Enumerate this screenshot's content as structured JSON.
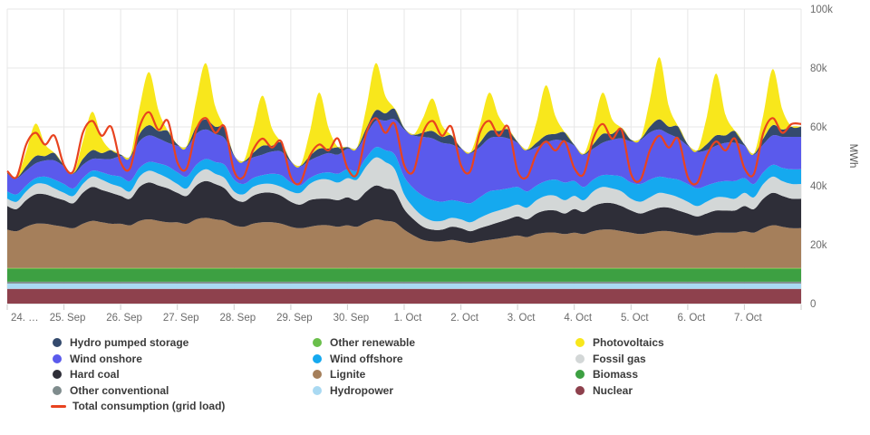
{
  "chart": {
    "y_axis": {
      "unit": "MWh",
      "tick_labels": [
        "0",
        "20k",
        "40k",
        "60k",
        "80k",
        "100k"
      ],
      "min": 0,
      "max": 100000
    },
    "x_axis": {
      "labels": [
        "24. …",
        "25. Sep",
        "26. Sep",
        "27. Sep",
        "28. Sep",
        "29. Sep",
        "30. Sep",
        "1. Oct",
        "2. Oct",
        "3. Oct",
        "4. Oct",
        "5. Oct",
        "6. Oct",
        "7. Oct"
      ]
    },
    "grid": {
      "line_color": "#e7e7e7",
      "axis_color": "#cccccc",
      "border_color": "#e2e2e2"
    },
    "chart_data": {
      "type": "area",
      "stacked": true,
      "value_unit": "MWh",
      "value_scale": 1000,
      "ylim": [
        0,
        100
      ],
      "days": 14,
      "points_per_day": 6,
      "hours_step": 4,
      "legend_position": "bottom",
      "series": [
        {
          "id": "nuclear",
          "name": "Nuclear",
          "color": "#8e414d",
          "constant": 5
        },
        {
          "id": "hydropower",
          "name": "Hydropower",
          "color": "#a9d9f2",
          "constant": 1.8
        },
        {
          "id": "other-conventional",
          "name": "Other conventional",
          "color": "#7f8c8d",
          "constant": 0.6
        },
        {
          "id": "biomass",
          "name": "Biomass",
          "color": "#3da042",
          "constant": 4.3
        },
        {
          "id": "other-renewable",
          "name": "Other renewable",
          "color": "#6abf4b",
          "constant": 0.4
        },
        {
          "id": "lignite",
          "name": "Lignite",
          "color": "#a57f5b",
          "values": [
            13,
            12.5,
            14,
            15,
            15,
            14.5,
            14,
            13.5,
            15,
            16,
            15.5,
            15,
            15,
            14.5,
            16,
            16.5,
            16,
            15.5,
            15.5,
            15,
            16.5,
            17,
            16.5,
            16,
            14.5,
            14,
            15,
            15.5,
            15.5,
            15,
            14,
            13.5,
            14,
            14.5,
            14.5,
            14,
            14.5,
            14,
            15.5,
            16.5,
            16,
            15.5,
            13,
            11,
            9.5,
            9,
            9,
            9.5,
            9,
            8.5,
            9,
            9.5,
            10,
            10.5,
            11,
            10.5,
            11.5,
            12,
            12,
            11.5,
            12,
            11.5,
            12.5,
            13,
            13,
            12.5,
            12,
            11.5,
            12,
            12.5,
            12.5,
            12,
            11.5,
            11,
            11.5,
            12,
            12,
            12,
            12.5,
            12,
            13.5,
            14.5,
            14,
            13.5
          ]
        },
        {
          "id": "hard-coal",
          "name": "Hard coal",
          "color": "#2e2e38",
          "values": [
            8,
            7.5,
            9,
            10,
            10,
            9.5,
            9,
            8.5,
            10.5,
            11.5,
            11,
            10.5,
            9.5,
            9,
            11.5,
            12.5,
            12,
            11.5,
            10,
            9.5,
            11.5,
            12.5,
            12,
            11,
            9,
            8.5,
            9.5,
            10,
            10,
            9.5,
            8.5,
            8,
            9,
            9,
            9,
            9,
            9.5,
            9,
            10.5,
            11.5,
            11,
            10.5,
            7,
            5.5,
            4.5,
            4,
            4,
            4.5,
            4.5,
            4,
            4.5,
            5,
            5.5,
            6,
            6.5,
            6,
            7,
            7.5,
            7.5,
            7,
            8,
            7.5,
            8.5,
            9,
            9,
            8.5,
            7.5,
            7,
            7.5,
            8,
            8,
            7.5,
            7,
            6.5,
            7,
            7.5,
            7.5,
            7.5,
            8.5,
            8,
            10,
            11,
            10.5,
            10
          ]
        },
        {
          "id": "fossil-gas",
          "name": "Fossil gas",
          "color": "#d3d7d7",
          "values": [
            2.5,
            2.5,
            3,
            3.5,
            3.5,
            3,
            2.5,
            2.5,
            3,
            3.5,
            3.5,
            3,
            3,
            2.5,
            3.5,
            4,
            4,
            3.5,
            3,
            2.5,
            3.5,
            4,
            3.5,
            3.5,
            2.5,
            2.5,
            3,
            3,
            3,
            3,
            3.5,
            4,
            5.5,
            6.5,
            6.5,
            6,
            6.5,
            7,
            8.5,
            9.5,
            9,
            7.5,
            5,
            4,
            3.5,
            3,
            3,
            3,
            3,
            3,
            3.5,
            4,
            4,
            4,
            4,
            4,
            4.5,
            5,
            5,
            4.5,
            4.5,
            4,
            5,
            5.5,
            5,
            5,
            4,
            4,
            4.5,
            5,
            4.5,
            4.5,
            4,
            3.5,
            4,
            4.5,
            4.5,
            4,
            4.5,
            4,
            5,
            5.5,
            5,
            5
          ]
        },
        {
          "id": "wind-offshore",
          "name": "Wind offshore",
          "color": "#15a9ef",
          "values": [
            2.5,
            2.5,
            2,
            2,
            2.5,
            3,
            3,
            2.5,
            2,
            2,
            2.5,
            3,
            3.5,
            3.5,
            3,
            3,
            3.5,
            4,
            4,
            4,
            3.5,
            3.5,
            4,
            4.5,
            4,
            3.5,
            3,
            3,
            3.5,
            4,
            3,
            2.5,
            2,
            2,
            2.5,
            3,
            3,
            3,
            3,
            3.5,
            4,
            5,
            6,
            6.5,
            7,
            7,
            6.5,
            6,
            6,
            6.5,
            7,
            7.5,
            7,
            6.5,
            6,
            5.5,
            5,
            5,
            5.5,
            6,
            5,
            4.5,
            4,
            4,
            4.5,
            5,
            5.5,
            6,
            6,
            5.5,
            5.5,
            6,
            6,
            6,
            5.5,
            5,
            5.5,
            6,
            5,
            4.5,
            4,
            4,
            4.5,
            5
          ]
        },
        {
          "id": "wind-onshore",
          "name": "Wind onshore",
          "color": "#5a5aec",
          "values": [
            6,
            5.5,
            5,
            5,
            5.5,
            6.5,
            6,
            5,
            4.5,
            4,
            4.5,
            5.5,
            7,
            8,
            9,
            9,
            8.5,
            8,
            9,
            10,
            10.5,
            10,
            9.5,
            9,
            8,
            7.5,
            7,
            7,
            7.5,
            8,
            7,
            6.5,
            6,
            6,
            6.5,
            6.5,
            7,
            7.5,
            8,
            9,
            10,
            12,
            16,
            18,
            20,
            21,
            20,
            19,
            18,
            17,
            17,
            18,
            18,
            17,
            15,
            14,
            13,
            13,
            13.5,
            14,
            12,
            11,
            10.5,
            11,
            12,
            13,
            14,
            15,
            16,
            16,
            15,
            14,
            13,
            12.5,
            12,
            12.5,
            13,
            13,
            11,
            10,
            9.5,
            10,
            10.5,
            11
          ]
        },
        {
          "id": "hydro-pumped-storage",
          "name": "Hydro pumped storage",
          "color": "#344a6d",
          "values": [
            0.3,
            0.2,
            1.5,
            2.5,
            1.5,
            2.5,
            0.3,
            0.2,
            2,
            3,
            2,
            3,
            0.5,
            0.3,
            2.5,
            3.5,
            2.5,
            4,
            0.5,
            0.3,
            2.5,
            3.5,
            2.5,
            3.5,
            0.3,
            0.2,
            1.5,
            3,
            2,
            3,
            0.3,
            0.2,
            1.5,
            2.5,
            1.5,
            2.5,
            0.5,
            0.3,
            2,
            3.5,
            2.5,
            3.5,
            0.5,
            0.3,
            1.5,
            2.5,
            2,
            3,
            0.3,
            0.2,
            1.5,
            2.5,
            2,
            3,
            0.3,
            0.2,
            1.5,
            2.5,
            2,
            3,
            0.3,
            0.2,
            1.5,
            3,
            2,
            3.5,
            0.5,
            0.3,
            2,
            3.5,
            2.5,
            4,
            0.5,
            0.3,
            2,
            3.5,
            2.5,
            4,
            0.5,
            0.3,
            2,
            3.5,
            2.5,
            3.5
          ]
        },
        {
          "id": "photovoltaics",
          "name": "Photovoltaics",
          "color": "#f8e71c",
          "values": [
            0,
            0,
            5,
            11,
            4,
            0,
            0,
            0,
            6,
            13,
            5,
            0,
            0,
            0,
            9,
            18,
            7,
            0,
            0,
            0,
            9,
            19,
            7,
            0,
            0,
            0,
            8,
            17,
            6,
            0,
            0,
            0,
            8,
            19,
            7,
            0,
            0,
            0,
            7,
            16,
            6,
            0,
            0,
            0,
            5,
            11,
            4,
            0,
            0,
            0,
            6,
            13,
            5,
            0,
            0,
            0,
            7,
            17,
            6,
            0,
            0,
            0,
            6,
            14,
            5,
            0,
            0,
            0,
            9,
            21,
            7,
            0,
            0,
            0,
            9,
            21,
            7,
            0,
            0,
            0,
            8,
            19,
            7,
            0
          ]
        }
      ],
      "line_series": {
        "id": "total-consumption",
        "name": "Total consumption (grid load)",
        "color": "#e8431f",
        "width": 2.2,
        "values": [
          45,
          43,
          54,
          58,
          54,
          57,
          47,
          45,
          58,
          62,
          57,
          60,
          48,
          46,
          60,
          65,
          59,
          62,
          48,
          46,
          59,
          63,
          58,
          60,
          45,
          43,
          52,
          56,
          53,
          55,
          43,
          41,
          50,
          54,
          52,
          56,
          46,
          44,
          58,
          63,
          58,
          61,
          47,
          45,
          58,
          62,
          57,
          60,
          47,
          45,
          58,
          62,
          57,
          60,
          45,
          43,
          51,
          55,
          52,
          55,
          46,
          44,
          56,
          61,
          56,
          59,
          44,
          42,
          52,
          57,
          53,
          56,
          43,
          41,
          50,
          55,
          52,
          56,
          46,
          44,
          58,
          63,
          58,
          61
        ]
      }
    }
  },
  "legend": {
    "columns": [
      {
        "items": [
          {
            "label": "Hydro pumped storage",
            "color": "#344a6d",
            "swatch": "dot"
          },
          {
            "label": "Wind onshore",
            "color": "#5a5aec",
            "swatch": "dot"
          },
          {
            "label": "Hard coal",
            "color": "#2e2e38",
            "swatch": "dot"
          },
          {
            "label": "Other conventional",
            "color": "#7f8c8d",
            "swatch": "dot"
          },
          {
            "label": "Total consumption (grid load)",
            "color": "#e8431f",
            "swatch": "line"
          }
        ]
      },
      {
        "items": [
          {
            "label": "Other renewable",
            "color": "#6abf4b",
            "swatch": "dot"
          },
          {
            "label": "Wind offshore",
            "color": "#15a9ef",
            "swatch": "dot"
          },
          {
            "label": "Lignite",
            "color": "#a57f5b",
            "swatch": "dot"
          },
          {
            "label": "Hydropower",
            "color": "#a9d9f2",
            "swatch": "dot"
          }
        ]
      },
      {
        "items": [
          {
            "label": "Photovoltaics",
            "color": "#f8e71c",
            "swatch": "dot"
          },
          {
            "label": "Fossil gas",
            "color": "#d3d7d7",
            "swatch": "dot"
          },
          {
            "label": "Biomass",
            "color": "#3da042",
            "swatch": "dot"
          },
          {
            "label": "Nuclear",
            "color": "#8e414d",
            "swatch": "dot"
          }
        ]
      }
    ]
  }
}
